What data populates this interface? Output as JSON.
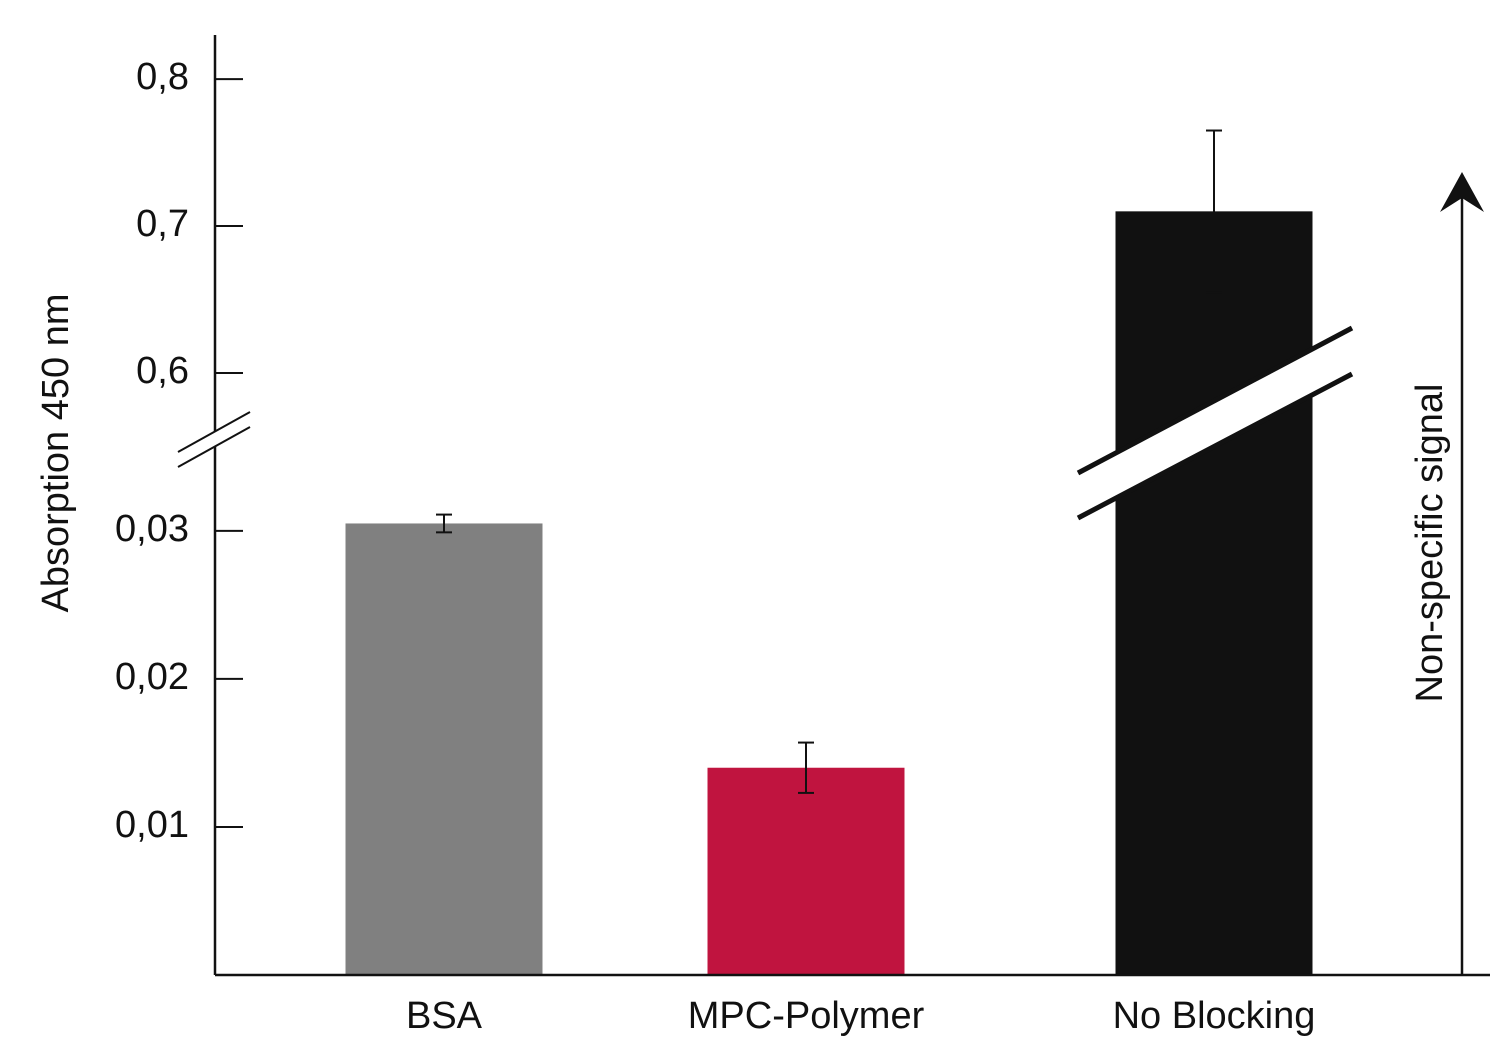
{
  "chart_data": {
    "type": "bar",
    "y_label": "Absorption 450 nm",
    "annotation": "Non-specific signal",
    "categories": [
      "BSA",
      "MPC-Polymer",
      "No Blocking"
    ],
    "values": [
      0.0305,
      0.014,
      0.71
    ],
    "errors": [
      0.0006,
      0.0017,
      0.055
    ],
    "colors": [
      "#808080",
      "#c0143f",
      "#111111"
    ],
    "y_segments": [
      {
        "ylim": [
          0,
          0.0358
        ],
        "yticks": [
          {
            "value": 0.01,
            "label": "0,01"
          },
          {
            "value": 0.02,
            "label": "0,02"
          },
          {
            "value": 0.03,
            "label": "0,03"
          }
        ]
      },
      {
        "ylim": [
          0.551,
          0.83
        ],
        "yticks": [
          {
            "value": 0.6,
            "label": "0,6"
          },
          {
            "value": 0.7,
            "label": "0,7"
          },
          {
            "value": 0.8,
            "label": "0,8"
          }
        ]
      }
    ],
    "grid": false
  }
}
